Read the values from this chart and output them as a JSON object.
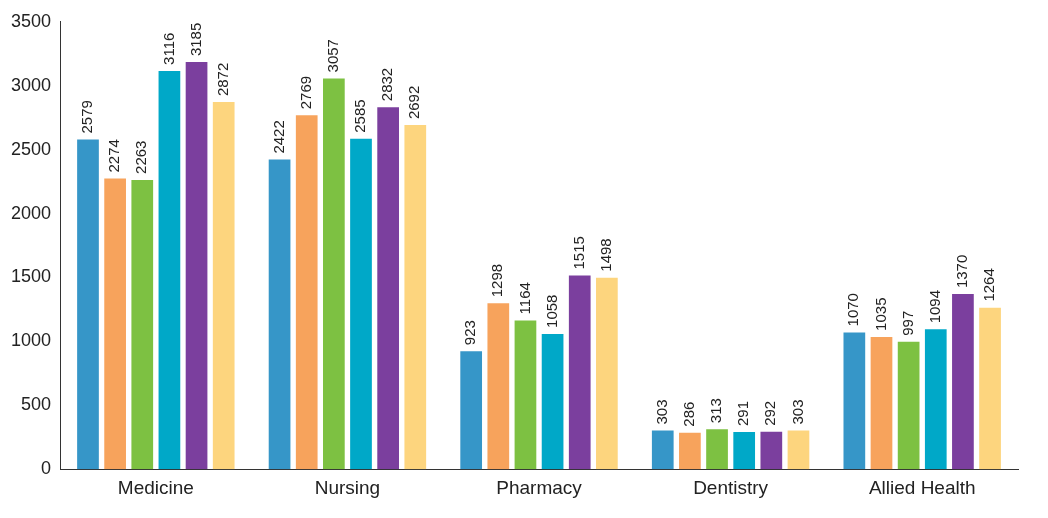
{
  "chart_data": {
    "type": "bar",
    "categories": [
      "Medicine",
      "Nursing",
      "Pharmacy",
      "Dentistry",
      "Allied Health"
    ],
    "series": [
      {
        "color": "#3696c8",
        "values": [
          2579,
          2422,
          923,
          303,
          1070
        ]
      },
      {
        "color": "#f7a35c",
        "values": [
          2274,
          2769,
          1298,
          286,
          1035
        ]
      },
      {
        "color": "#7dc142",
        "values": [
          2263,
          3057,
          1164,
          313,
          997
        ]
      },
      {
        "color": "#00a8c8",
        "values": [
          3116,
          2585,
          1058,
          291,
          1094
        ]
      },
      {
        "color": "#7b3f9e",
        "values": [
          3185,
          2832,
          1515,
          292,
          1370
        ]
      },
      {
        "color": "#fdd57e",
        "values": [
          2872,
          2692,
          1498,
          303,
          1264
        ]
      }
    ],
    "ylim": [
      0,
      3500
    ],
    "yticks": [
      0,
      500,
      1000,
      1500,
      2000,
      2500,
      3000,
      3500
    ],
    "grid": false,
    "legend": false,
    "data_labels": true
  }
}
